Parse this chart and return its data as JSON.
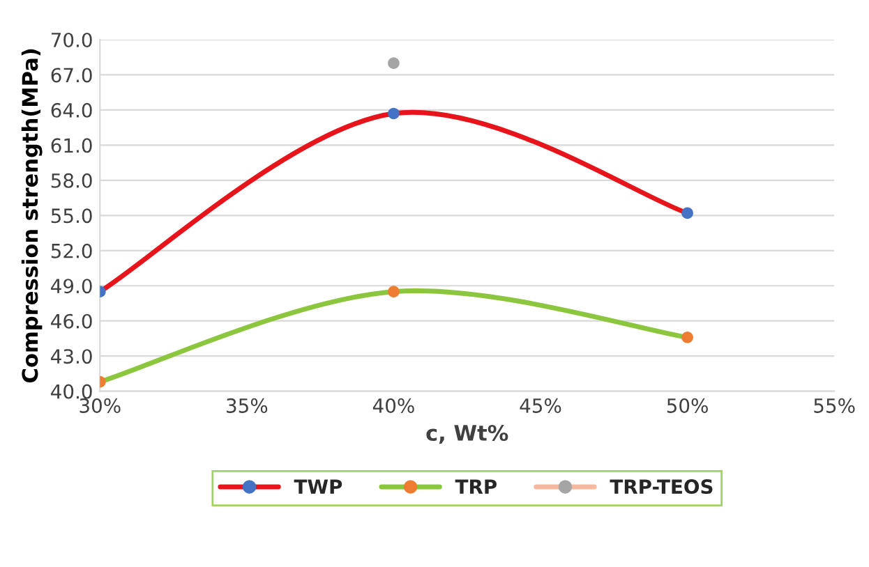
{
  "chart_data": {
    "type": "line",
    "xlabel": "c, Wt%",
    "ylabel": "Compression strength(MPa)",
    "x": [
      30,
      40,
      50
    ],
    "series": [
      {
        "name": "TWP",
        "color": "#e8141c",
        "colors": [
          "#4472c4",
          "#4472c4",
          "#4472c4"
        ],
        "values": [
          48.5,
          63.7,
          55.2
        ]
      },
      {
        "name": "TRP",
        "color": "#8cc63f",
        "colors": [
          "#ed7d31",
          "#ed7d31",
          "#ed7d31"
        ],
        "values": [
          40.8,
          48.5,
          44.6
        ]
      },
      {
        "name": "TRP-TEOS",
        "color": "#f4b9a0",
        "colors": [
          null,
          "#a5a5a5",
          null
        ],
        "values": [
          null,
          68.0,
          null
        ]
      }
    ],
    "xlim": [
      30,
      55
    ],
    "xticks": [
      {
        "value": 30,
        "label": "30%"
      },
      {
        "value": 35,
        "label": "35%"
      },
      {
        "value": 40,
        "label": "40%"
      },
      {
        "value": 45,
        "label": "45%"
      },
      {
        "value": 50,
        "label": "50%"
      },
      {
        "value": 55,
        "label": "55%"
      }
    ],
    "ylim": [
      40,
      70
    ],
    "yticks": [
      {
        "value": 40,
        "label": "40.0"
      },
      {
        "value": 43,
        "label": "43.0"
      },
      {
        "value": 46,
        "label": "46.0"
      },
      {
        "value": 49,
        "label": "49.0"
      },
      {
        "value": 52,
        "label": "52.0"
      },
      {
        "value": 55,
        "label": "55.0"
      },
      {
        "value": 58,
        "label": "58.0"
      },
      {
        "value": 61,
        "label": "61.0"
      },
      {
        "value": 64,
        "label": "64.0"
      },
      {
        "value": 67,
        "label": "67.0"
      },
      {
        "value": 70,
        "label": "70.0"
      }
    ],
    "grid": "y",
    "legend": "bottom",
    "marker": "circle",
    "line_style": "solid"
  }
}
